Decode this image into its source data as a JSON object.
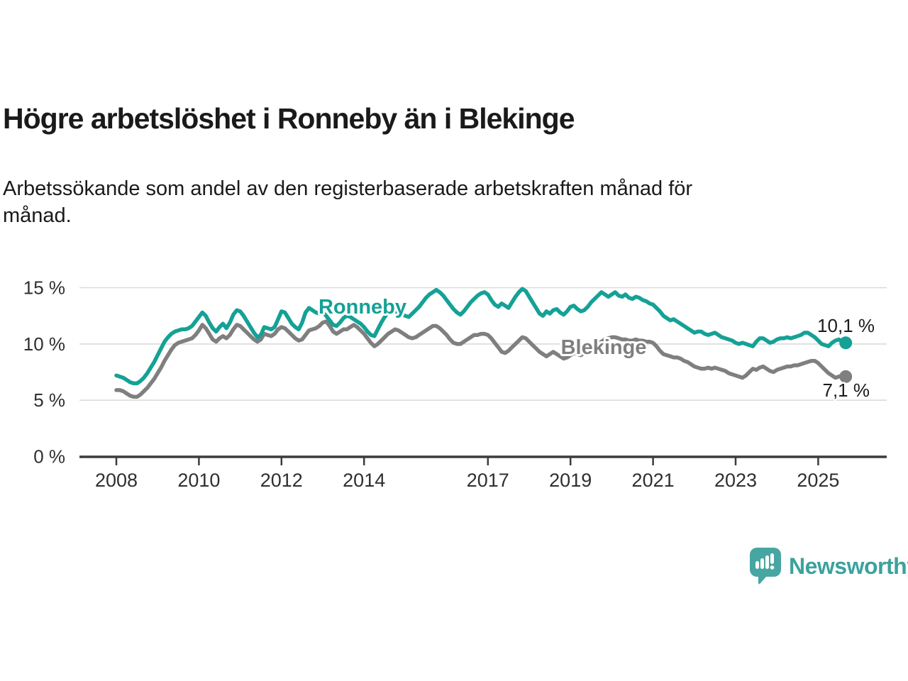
{
  "header": {
    "title": "Högre arbetslöshet i Ronneby än i Blekinge",
    "subtitle": "Arbetssökande som andel av den registerbaserade arbetskraften månad för\nmånad."
  },
  "footer": {
    "brand": "Newsworthy"
  },
  "colors": {
    "ronneby": "#15A196",
    "blekinge": "#7F7F7F",
    "axis": "#3c3c3c",
    "grid": "#dcdcdc",
    "logo": "#46A6A2"
  },
  "chart_data": {
    "type": "line",
    "title": "Högre arbetslöshet i Ronneby än i Blekinge",
    "subtitle": "Arbetssökande som andel av den registerbaserade arbetskraften månad för månad.",
    "x_start": 2008.0,
    "x_step_months": 1,
    "x_ticks": [
      2008,
      2010,
      2012,
      2014,
      2017,
      2019,
      2021,
      2023,
      2025
    ],
    "y_ticks": [
      {
        "value": 15,
        "label": "15 %"
      },
      {
        "value": 10,
        "label": "10 %"
      },
      {
        "value": 5,
        "label": "5 %"
      },
      {
        "value": 0,
        "label": "0 %"
      }
    ],
    "ylim": [
      0,
      16.5
    ],
    "grid": true,
    "legend_position": "inline-labels",
    "series": [
      {
        "name": "Ronneby",
        "color": "#15A196",
        "end_label": "10,1 %",
        "values": [
          7.2,
          7.1,
          7.0,
          6.8,
          6.6,
          6.5,
          6.5,
          6.7,
          7.0,
          7.4,
          7.9,
          8.4,
          9.0,
          9.6,
          10.2,
          10.6,
          10.9,
          11.1,
          11.2,
          11.3,
          11.3,
          11.4,
          11.6,
          12.0,
          12.4,
          12.8,
          12.5,
          11.9,
          11.4,
          11.1,
          11.5,
          11.8,
          11.4,
          11.9,
          12.6,
          13.0,
          12.9,
          12.5,
          12.0,
          11.5,
          11.0,
          10.6,
          10.8,
          11.5,
          11.4,
          11.3,
          11.5,
          12.2,
          12.9,
          12.8,
          12.3,
          11.8,
          11.5,
          11.3,
          11.9,
          12.8,
          13.2,
          13.0,
          12.8,
          12.7,
          12.8,
          12.5,
          12.1,
          11.7,
          11.6,
          11.9,
          12.3,
          12.5,
          12.4,
          12.2,
          12.0,
          11.8,
          11.5,
          11.1,
          10.8,
          10.7,
          11.3,
          11.9,
          12.4,
          12.8,
          12.9,
          12.9,
          12.8,
          12.6,
          12.5,
          12.4,
          12.7,
          13.0,
          13.3,
          13.7,
          14.1,
          14.4,
          14.6,
          14.8,
          14.6,
          14.3,
          13.9,
          13.5,
          13.1,
          12.8,
          12.6,
          12.9,
          13.3,
          13.7,
          14.0,
          14.3,
          14.5,
          14.6,
          14.4,
          13.9,
          13.5,
          13.3,
          13.6,
          13.4,
          13.2,
          13.7,
          14.2,
          14.6,
          14.9,
          14.7,
          14.2,
          13.7,
          13.2,
          12.7,
          12.5,
          12.9,
          12.7,
          13.0,
          13.1,
          12.8,
          12.6,
          12.9,
          13.3,
          13.4,
          13.1,
          12.9,
          13.0,
          13.3,
          13.7,
          14.0,
          14.3,
          14.6,
          14.4,
          14.2,
          14.4,
          14.6,
          14.3,
          14.2,
          14.4,
          14.1,
          14.0,
          14.2,
          14.1,
          13.9,
          13.8,
          13.6,
          13.5,
          13.2,
          12.9,
          12.5,
          12.3,
          12.1,
          12.2,
          12.0,
          11.8,
          11.6,
          11.4,
          11.2,
          11.0,
          11.1,
          11.1,
          10.9,
          10.8,
          10.9,
          11.0,
          10.8,
          10.6,
          10.5,
          10.4,
          10.3,
          10.1,
          10.0,
          10.1,
          10.0,
          9.9,
          9.8,
          10.2,
          10.5,
          10.5,
          10.3,
          10.1,
          10.2,
          10.4,
          10.5,
          10.5,
          10.6,
          10.5,
          10.6,
          10.7,
          10.8,
          11.0,
          11.0,
          10.8,
          10.6,
          10.3,
          10.0,
          9.9,
          9.8,
          10.1,
          10.3,
          10.4,
          10.2,
          10.1
        ]
      },
      {
        "name": "Blekinge",
        "color": "#7F7F7F",
        "end_label": "7,1 %",
        "values": [
          5.9,
          5.9,
          5.8,
          5.6,
          5.4,
          5.3,
          5.3,
          5.5,
          5.8,
          6.1,
          6.5,
          6.9,
          7.4,
          7.9,
          8.5,
          9.0,
          9.5,
          9.9,
          10.1,
          10.2,
          10.3,
          10.4,
          10.5,
          10.8,
          11.2,
          11.7,
          11.4,
          10.9,
          10.4,
          10.2,
          10.5,
          10.7,
          10.5,
          10.8,
          11.3,
          11.7,
          11.6,
          11.3,
          11.0,
          10.7,
          10.4,
          10.2,
          10.4,
          10.9,
          10.8,
          10.7,
          10.9,
          11.3,
          11.5,
          11.4,
          11.1,
          10.8,
          10.5,
          10.3,
          10.4,
          10.8,
          11.2,
          11.3,
          11.4,
          11.6,
          11.9,
          12.0,
          11.6,
          11.1,
          10.9,
          11.1,
          11.3,
          11.3,
          11.5,
          11.7,
          11.5,
          11.2,
          10.9,
          10.5,
          10.1,
          9.8,
          10.0,
          10.3,
          10.6,
          10.9,
          11.1,
          11.3,
          11.2,
          11.0,
          10.8,
          10.6,
          10.5,
          10.6,
          10.8,
          11.0,
          11.2,
          11.4,
          11.6,
          11.6,
          11.4,
          11.1,
          10.8,
          10.4,
          10.1,
          10.0,
          10.0,
          10.2,
          10.4,
          10.6,
          10.8,
          10.8,
          10.9,
          10.9,
          10.8,
          10.5,
          10.1,
          9.7,
          9.3,
          9.2,
          9.4,
          9.7,
          10.0,
          10.3,
          10.6,
          10.5,
          10.2,
          9.9,
          9.6,
          9.3,
          9.1,
          8.9,
          9.1,
          9.3,
          9.1,
          8.9,
          8.7,
          8.8,
          9.0,
          9.2,
          9.1,
          9.0,
          9.2,
          9.4,
          9.6,
          9.8,
          10.0,
          10.2,
          10.4,
          10.5,
          10.6,
          10.6,
          10.5,
          10.4,
          10.4,
          10.3,
          10.3,
          10.4,
          10.3,
          10.3,
          10.2,
          10.2,
          10.1,
          9.8,
          9.4,
          9.1,
          9.0,
          8.9,
          8.8,
          8.8,
          8.7,
          8.5,
          8.4,
          8.2,
          8.0,
          7.9,
          7.8,
          7.8,
          7.9,
          7.8,
          7.9,
          7.8,
          7.7,
          7.6,
          7.4,
          7.3,
          7.2,
          7.1,
          7.0,
          7.2,
          7.5,
          7.8,
          7.7,
          7.9,
          8.0,
          7.8,
          7.6,
          7.5,
          7.7,
          7.8,
          7.9,
          8.0,
          8.0,
          8.1,
          8.1,
          8.2,
          8.3,
          8.4,
          8.5,
          8.5,
          8.3,
          8.0,
          7.7,
          7.4,
          7.2,
          7.0,
          7.1,
          7.2,
          7.1
        ]
      }
    ]
  }
}
